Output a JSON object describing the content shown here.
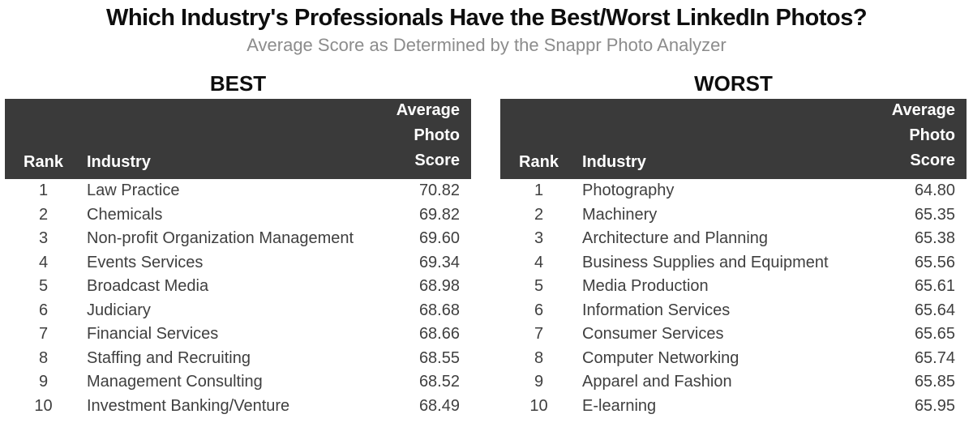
{
  "title": "Which Industry's Professionals Have the Best/Worst LinkedIn Photos?",
  "subtitle": "Average Score as Determined by the Snappr Photo Analyzer",
  "colors": {
    "header_bg": "#3a3a3a",
    "header_text": "#ffffff",
    "title_text": "#0e0e0e",
    "subtitle_text": "#8c8c8c",
    "body_text": "#3f3f3f",
    "background": "#ffffff"
  },
  "chart_data": [
    {
      "type": "table",
      "title": "BEST",
      "columns": {
        "rank": "Rank",
        "industry": "Industry",
        "score": "Average Photo Score"
      },
      "rows": [
        {
          "rank": "1",
          "industry": "Law Practice",
          "score": "70.82"
        },
        {
          "rank": "2",
          "industry": "Chemicals",
          "score": "69.82"
        },
        {
          "rank": "3",
          "industry": "Non-profit Organization Management",
          "score": "69.60"
        },
        {
          "rank": "4",
          "industry": "Events Services",
          "score": "69.34"
        },
        {
          "rank": "5",
          "industry": "Broadcast Media",
          "score": "68.98"
        },
        {
          "rank": "6",
          "industry": "Judiciary",
          "score": "68.68"
        },
        {
          "rank": "7",
          "industry": "Financial Services",
          "score": "68.66"
        },
        {
          "rank": "8",
          "industry": "Staffing and Recruiting",
          "score": "68.55"
        },
        {
          "rank": "9",
          "industry": "Management Consulting",
          "score": "68.52"
        },
        {
          "rank": "10",
          "industry": "Investment Banking/Venture",
          "score": "68.49"
        }
      ]
    },
    {
      "type": "table",
      "title": "WORST",
      "columns": {
        "rank": "Rank",
        "industry": "Industry",
        "score": "Average Photo Score"
      },
      "rows": [
        {
          "rank": "1",
          "industry": "Photography",
          "score": "64.80"
        },
        {
          "rank": "2",
          "industry": "Machinery",
          "score": "65.35"
        },
        {
          "rank": "3",
          "industry": "Architecture and Planning",
          "score": "65.38"
        },
        {
          "rank": "4",
          "industry": "Business Supplies and Equipment",
          "score": "65.56"
        },
        {
          "rank": "5",
          "industry": "Media Production",
          "score": "65.61"
        },
        {
          "rank": "6",
          "industry": "Information Services",
          "score": "65.64"
        },
        {
          "rank": "7",
          "industry": "Consumer Services",
          "score": "65.65"
        },
        {
          "rank": "8",
          "industry": "Computer Networking",
          "score": "65.74"
        },
        {
          "rank": "9",
          "industry": "Apparel and Fashion",
          "score": "65.85"
        },
        {
          "rank": "10",
          "industry": "E-learning",
          "score": "65.95"
        }
      ]
    }
  ]
}
